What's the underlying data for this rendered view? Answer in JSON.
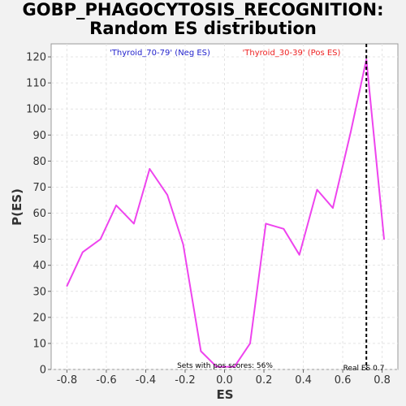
{
  "chart_data": {
    "type": "line",
    "title_line1": "GOBP_PHAGOCYTOSIS_RECOGNITION:",
    "title_line2": "Random ES distribution",
    "xlabel": "ES",
    "ylabel": "P(ES)",
    "xlim": [
      -0.88,
      0.88
    ],
    "ylim": [
      0,
      125
    ],
    "xticks": [
      -0.8,
      -0.6,
      -0.4,
      -0.2,
      0.0,
      0.2,
      0.4,
      0.6,
      0.8
    ],
    "xtick_labels": [
      "-0.8",
      "-0.6",
      "-0.4",
      "-0.2",
      "0.0",
      "0.2",
      "0.4",
      "0.6",
      "0.8"
    ],
    "yticks": [
      0,
      10,
      20,
      30,
      40,
      50,
      60,
      70,
      80,
      90,
      100,
      110,
      120
    ],
    "ytick_labels": [
      "0",
      "10",
      "20",
      "30",
      "40",
      "50",
      "60",
      "70",
      "80",
      "90",
      "100",
      "110",
      "120"
    ],
    "grid": true,
    "series": [
      {
        "color": "#ee44ee",
        "x": [
          -0.8,
          -0.72,
          -0.63,
          -0.55,
          -0.46,
          -0.38,
          -0.29,
          -0.21,
          -0.12,
          -0.04,
          0.05,
          0.13,
          0.21,
          0.3,
          0.38,
          0.47,
          0.55,
          0.64,
          0.72,
          0.81
        ],
        "y": [
          32,
          45,
          50,
          63,
          56,
          77,
          67,
          48,
          7,
          1,
          1,
          10,
          56,
          54,
          44,
          69,
          62,
          91,
          119,
          50
        ]
      }
    ],
    "real_es": 0.72,
    "legend": [
      {
        "label": "'Thyroid_70-79' (Neg ES)",
        "color": "#2222cc",
        "position": "top-left"
      },
      {
        "label": "'Thyroid_30-39' (Pos ES)",
        "color": "#ee2222",
        "position": "top-right"
      }
    ],
    "annotations": {
      "pos_scores": "Sets with pos scores: 56%",
      "real_es": "Real ES 0.7"
    }
  }
}
